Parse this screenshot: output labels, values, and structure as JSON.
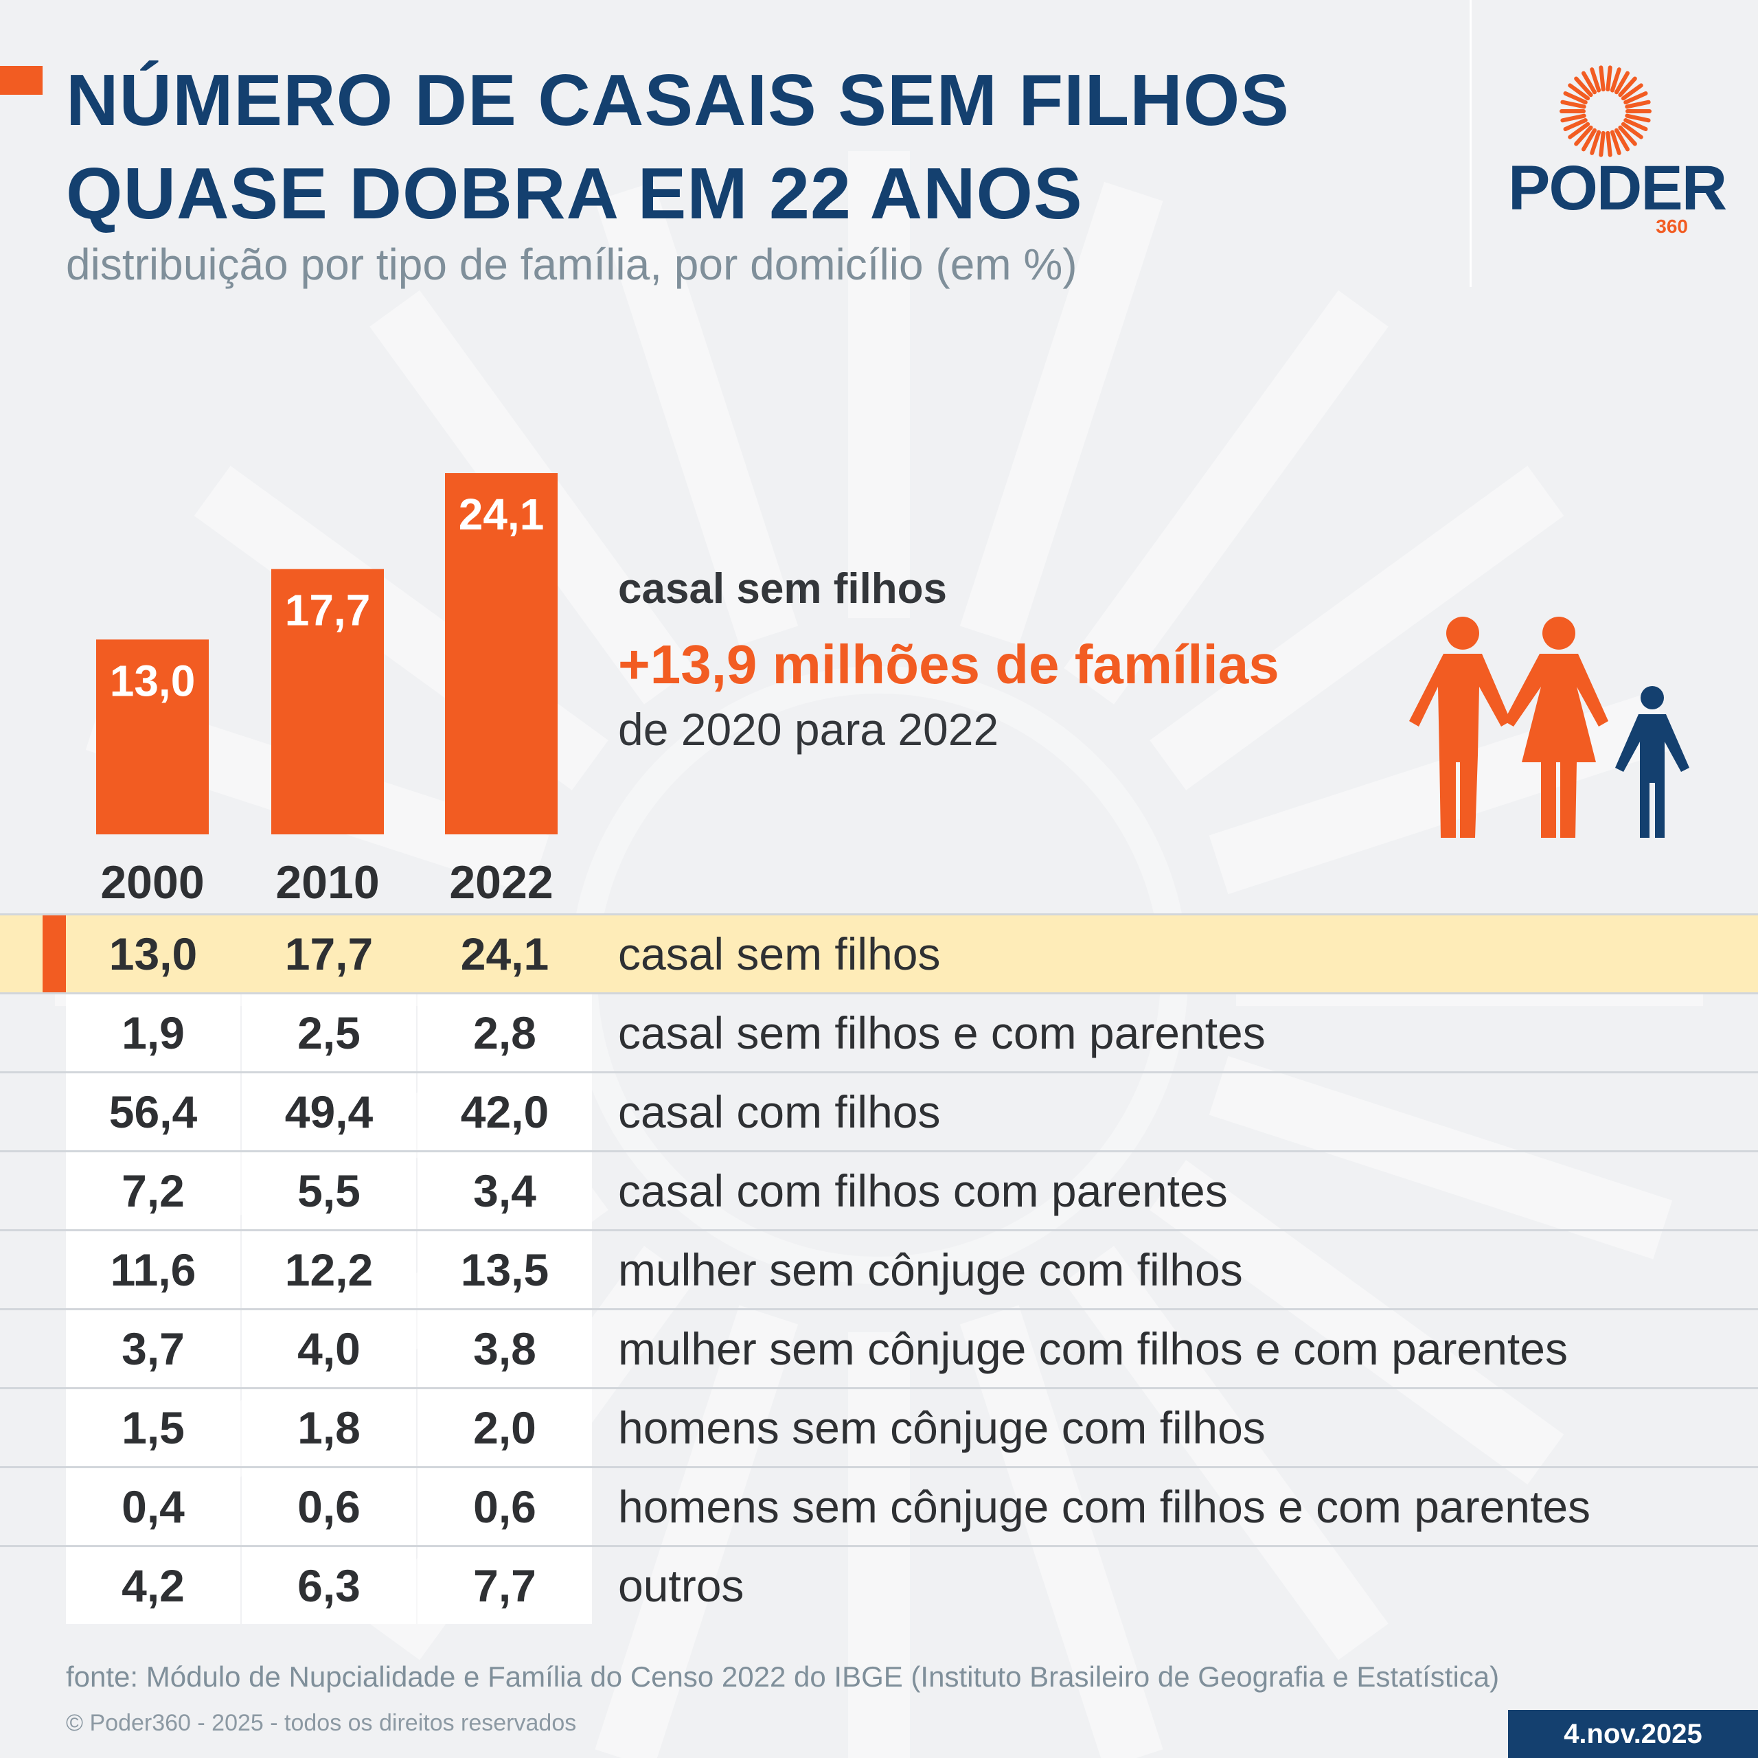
{
  "header": {
    "title_line1": "NÚMERO DE CASAIS SEM FILHOS",
    "title_line2": "QUASE DOBRA EM 22 ANOS",
    "subtitle": "distribuição por tipo de família, por domicílio (em %)"
  },
  "logo": {
    "word": "PODER",
    "sub": "360"
  },
  "colors": {
    "accent": "#f25c22",
    "brand": "#14406f",
    "highlight_row": "#feecb8",
    "background": "#f0f1f3"
  },
  "highlight": {
    "label": "casal sem filhos",
    "value": "+13,9 milhões de famílias",
    "caption": "de 2020 para 2022"
  },
  "chart_data": {
    "type": "bar",
    "categories": [
      "2000",
      "2010",
      "2022"
    ],
    "values": [
      13.0,
      17.7,
      24.1
    ],
    "value_labels": [
      "13,0",
      "17,7",
      "24,1"
    ]
  },
  "table": {
    "rows": [
      {
        "v2000": "13,0",
        "v2010": "17,7",
        "v2022": "24,1",
        "label": "casal sem filhos"
      },
      {
        "v2000": "1,9",
        "v2010": "2,5",
        "v2022": "2,8",
        "label": "casal sem filhos e com parentes"
      },
      {
        "v2000": "56,4",
        "v2010": "49,4",
        "v2022": "42,0",
        "label": "casal com filhos"
      },
      {
        "v2000": "7,2",
        "v2010": "5,5",
        "v2022": "3,4",
        "label": "casal com filhos com parentes"
      },
      {
        "v2000": "11,6",
        "v2010": "12,2",
        "v2022": "13,5",
        "label": "mulher sem cônjuge com filhos"
      },
      {
        "v2000": "3,7",
        "v2010": "4,0",
        "v2022": "3,8",
        "label": "mulher sem cônjuge com filhos e com parentes"
      },
      {
        "v2000": "1,5",
        "v2010": "1,8",
        "v2022": "2,0",
        "label": "homens sem cônjuge com filhos"
      },
      {
        "v2000": "0,4",
        "v2010": "0,6",
        "v2022": "0,6",
        "label": "homens sem cônjuge com filhos e com parentes"
      },
      {
        "v2000": "4,2",
        "v2010": "6,3",
        "v2022": "7,7",
        "label": "outros"
      }
    ]
  },
  "footer": {
    "source": "fonte: Módulo de Nupcialidade e Família do Censo 2022 do IBGE (Instituto Brasileiro de Geografia e Estatística)",
    "copyright": "© Poder360 - 2025 - todos os direitos reservados",
    "date": "4.nov.2025"
  }
}
